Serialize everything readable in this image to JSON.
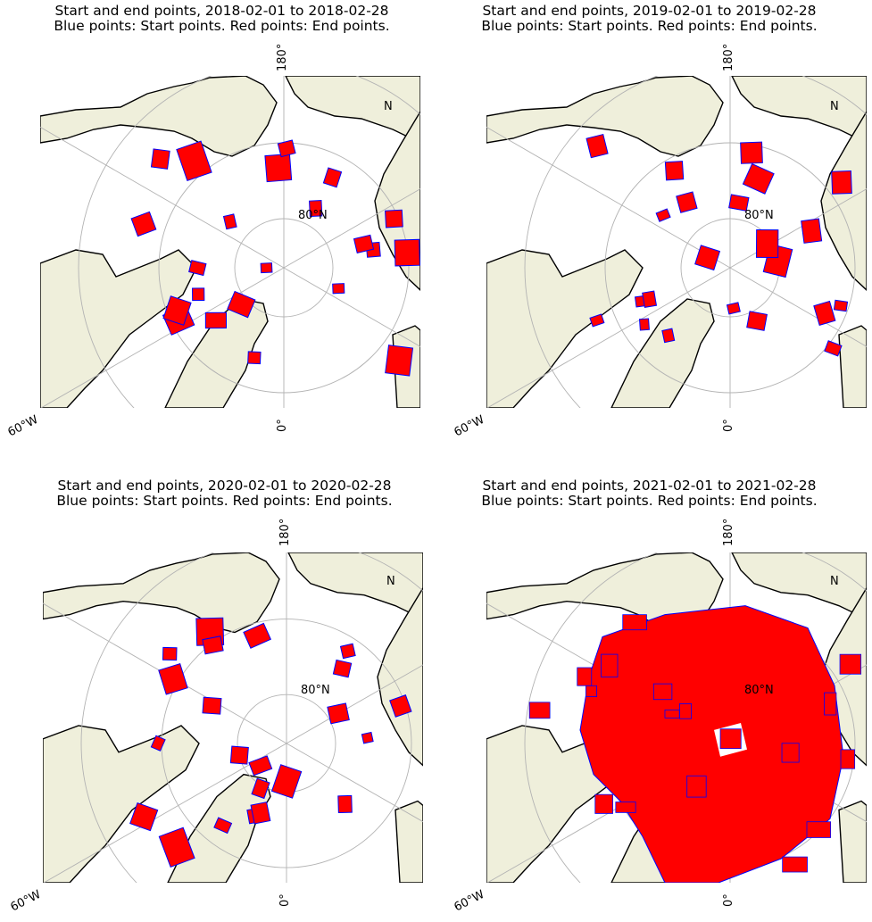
{
  "figure": {
    "panels": [
      {
        "line1": "Start and end points, 2018-02-01 to 2018-02-28",
        "line2": "Blue points: Start points. Red points: End points.",
        "lat_label": "80°N",
        "lon_labels": {
          "top": "180°",
          "bottom": "0°",
          "left": "60°W",
          "right_n": "N"
        },
        "extent": "sparse"
      },
      {
        "line1": "Start and end points, 2019-02-01 to 2019-02-28",
        "line2": "Blue points: Start points. Red points: End points.",
        "lat_label": "80°N",
        "lon_labels": {
          "top": "180°",
          "bottom": "0°",
          "left": "60°W",
          "right_n": "N"
        },
        "extent": "sparse"
      },
      {
        "line1": "Start and end points, 2020-02-01 to 2020-02-28",
        "line2": "Blue points: Start points. Red points: End points.",
        "lat_label": "80°N",
        "lon_labels": {
          "top": "180°",
          "bottom": "0°",
          "left": "60°W",
          "right_n": "N"
        },
        "extent": "sparse"
      },
      {
        "line1": "Start and end points, 2021-02-01 to 2021-02-28",
        "line2": "Blue points: Start points. Red points: End points.",
        "lat_label": "80°N",
        "lon_labels": {
          "top": "180°",
          "bottom": "0°",
          "left": "60°W",
          "right_n": "N"
        },
        "extent": "dense"
      }
    ],
    "colors": {
      "land": "#efefdb",
      "ocean": "#ffffff",
      "coast": "#000000",
      "grid": "#b3b3b3",
      "start_points": "#0000ff",
      "end_points": "#ff0000"
    }
  }
}
